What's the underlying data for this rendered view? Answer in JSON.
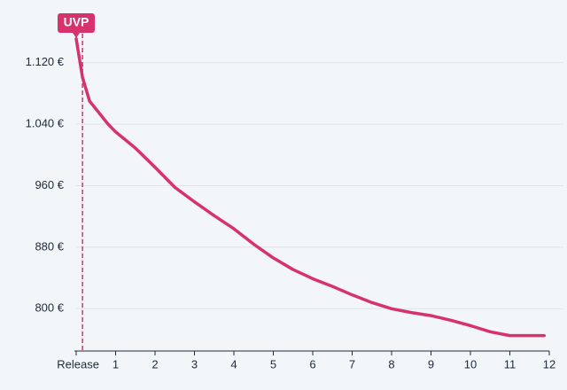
{
  "chart_data": {
    "type": "line",
    "x": [
      0,
      0.16,
      0.34,
      0.81,
      1,
      1.5,
      2,
      2.5,
      3,
      3.5,
      4,
      4.5,
      5,
      5.5,
      6,
      6.5,
      7,
      7.5,
      8,
      8.5,
      9,
      9.5,
      10,
      10.5,
      11,
      11.5,
      11.87
    ],
    "series": [
      {
        "color": "#d6336c",
        "values": [
          1151,
          1101,
          1070,
          1040,
          1030,
          1009,
          984,
          958,
          939,
          921,
          904,
          884,
          866,
          851,
          839,
          829,
          818,
          808,
          800,
          795,
          791,
          785,
          778,
          770,
          765,
          765,
          765
        ]
      }
    ],
    "xlim": [
      0,
      12
    ],
    "xticks": [
      {
        "value": 0,
        "label": "Release"
      },
      1,
      2,
      3,
      4,
      5,
      6,
      7,
      8,
      9,
      10,
      11,
      12
    ],
    "ylim": [
      745,
      1190
    ],
    "yticks": [
      {
        "value": 800,
        "label": "800 €"
      },
      {
        "value": 880,
        "label": "880 €"
      },
      {
        "value": 960,
        "label": "960 €"
      },
      {
        "value": 1040,
        "label": "1.040 €"
      },
      {
        "value": 1120,
        "label": "1.120 €"
      }
    ],
    "grid": true,
    "annotation": {
      "text": "UVP",
      "x": 0.16
    }
  }
}
